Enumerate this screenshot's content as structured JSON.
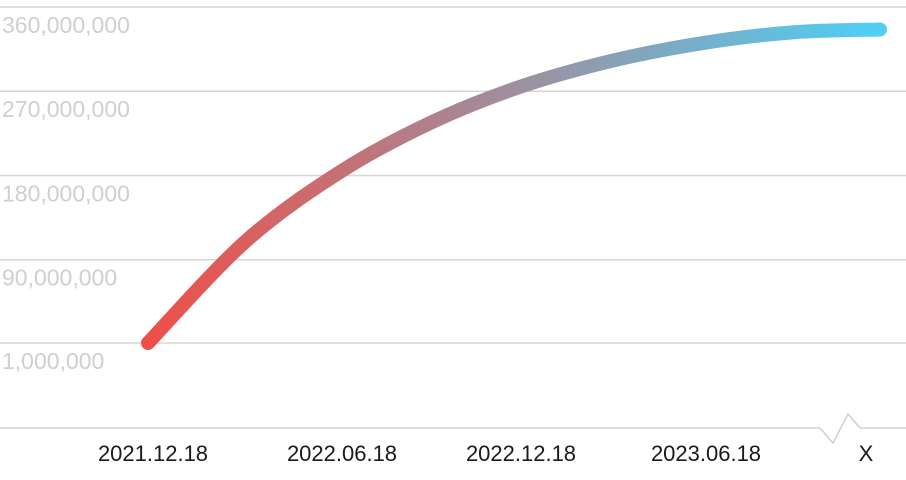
{
  "chart_data": {
    "type": "line",
    "title": "",
    "xlabel": "",
    "ylabel": "",
    "grid": true,
    "legend": "none",
    "y_ticks": [
      {
        "value": 1000000,
        "label": "1,000,000"
      },
      {
        "value": 90000000,
        "label": "90,000,000"
      },
      {
        "value": 180000000,
        "label": "180,000,000"
      },
      {
        "value": 270000000,
        "label": "270,000,000"
      },
      {
        "value": 360000000,
        "label": "360,000,000"
      }
    ],
    "x_ticks": [
      "2021.12.18",
      "2022.06.18",
      "2022.12.18",
      "2023.06.18",
      "X"
    ],
    "x_axis_break_before_last": true,
    "series": [
      {
        "x": [
          "2021.12.18",
          "2022.03.18",
          "2022.06.18",
          "2022.09.18",
          "2022.12.18",
          "2023.03.18",
          "2023.06.18",
          "2023.09.18",
          "X"
        ],
        "values": [
          1000000,
          110000000,
          185000000,
          237000000,
          275000000,
          303000000,
          322000000,
          333000000,
          336000000
        ]
      }
    ],
    "line_gradient": [
      "#ef4f48",
      "#4ecff5"
    ]
  }
}
